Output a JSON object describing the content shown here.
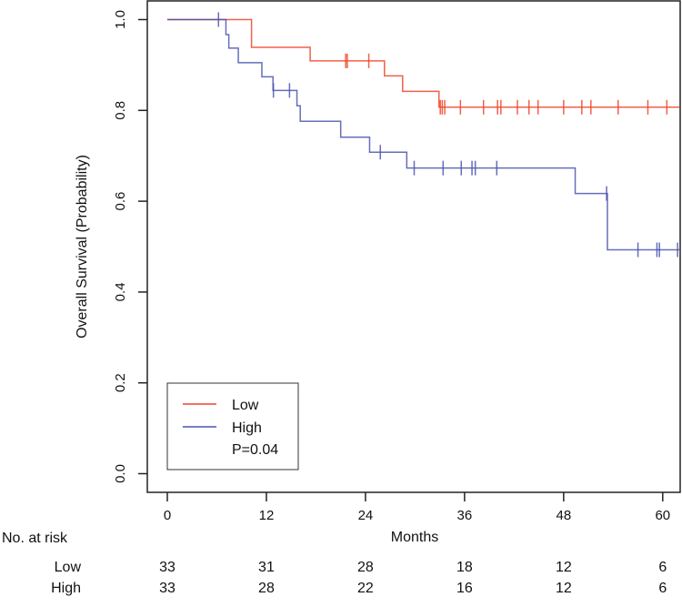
{
  "chart_data": {
    "type": "line",
    "subtype": "kaplan-meier",
    "xlabel": "Months",
    "ylabel": "Overall Survival (Probability)",
    "xlim": [
      0,
      62
    ],
    "ylim": [
      0,
      1
    ],
    "x_ticks": [
      "0",
      "12",
      "24",
      "36",
      "48",
      "60"
    ],
    "x_tick_values": [
      0,
      12,
      24,
      36,
      48,
      60
    ],
    "y_ticks": [
      "0.0",
      "0.2",
      "0.4",
      "0.6",
      "0.8",
      "1.0"
    ],
    "y_tick_values": [
      0,
      0.2,
      0.4,
      0.6,
      0.8,
      1.0
    ],
    "grid": false,
    "legend_position": "bottom-left",
    "annotation": "P=0.04",
    "series": [
      {
        "name": "Low",
        "color": "#f0442a",
        "steps": [
          [
            0,
            1.0
          ],
          [
            10.2,
            0.939
          ],
          [
            17.3,
            0.909
          ],
          [
            26.3,
            0.876
          ],
          [
            28.5,
            0.842
          ],
          [
            32.9,
            0.807
          ]
        ],
        "end": 62,
        "censors": [
          21.6,
          21.8,
          24.4,
          33.06,
          33.3,
          33.6,
          35.5,
          38.3,
          40.0,
          40.4,
          42.4,
          43.8,
          44.9,
          48.0,
          50.2,
          51.3,
          54.6,
          58.2,
          60.5
        ]
      },
      {
        "name": "High",
        "color": "#4a55b0",
        "steps": [
          [
            0,
            1.0
          ],
          [
            7.1,
            0.967
          ],
          [
            7.45,
            0.937
          ],
          [
            8.6,
            0.905
          ],
          [
            11.45,
            0.874
          ],
          [
            12.8,
            0.844
          ],
          [
            15.7,
            0.81
          ],
          [
            16.1,
            0.776
          ],
          [
            21.0,
            0.741
          ],
          [
            24.5,
            0.708
          ],
          [
            29.0,
            0.673
          ],
          [
            49.4,
            0.617
          ],
          [
            53.3,
            0.493
          ]
        ],
        "end": 62,
        "censors": [
          6.2,
          12.85,
          14.8,
          25.8,
          29.9,
          33.4,
          35.6,
          36.9,
          37.3,
          39.9,
          53.2,
          57.0,
          59.3,
          59.6,
          61.8
        ]
      }
    ],
    "risk_table": {
      "title": "No. at risk",
      "times": [
        0,
        12,
        24,
        36,
        48,
        60
      ],
      "rows": [
        {
          "label": "Low",
          "values": [
            "33",
            "31",
            "28",
            "18",
            "12",
            "6"
          ]
        },
        {
          "label": "High",
          "values": [
            "33",
            "28",
            "22",
            "16",
            "12",
            "6"
          ]
        }
      ]
    }
  }
}
